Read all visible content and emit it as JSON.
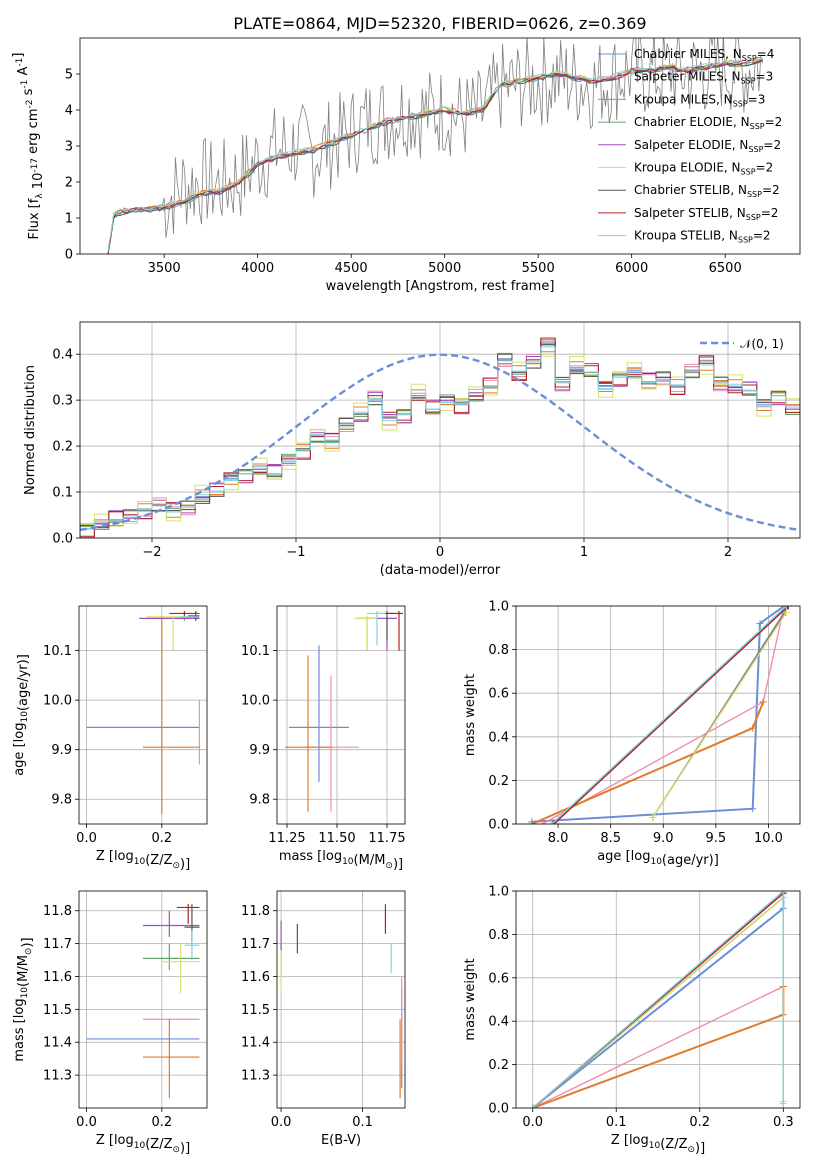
{
  "figure": {
    "title": "PLATE=0864, MJD=52320, FIBERID=0626, z=0.369"
  },
  "models": [
    {
      "name": "Chabrier MILES",
      "nssp": "4",
      "color": "#6a8fd8"
    },
    {
      "name": "Salpeter MILES",
      "nssp": "3",
      "color": "#ee8fb0"
    },
    {
      "name": "Kroupa MILES",
      "nssp": "3",
      "color": "#e07b2e"
    },
    {
      "name": "Chabrier ELODIE",
      "nssp": "2",
      "color": "#63a86a"
    },
    {
      "name": "Salpeter ELODIE",
      "nssp": "2",
      "color": "#a14fbf"
    },
    {
      "name": "Kroupa ELODIE",
      "nssp": "2",
      "color": "#d6e36a"
    },
    {
      "name": "Chabrier STELIB",
      "nssp": "2",
      "color": "#555555"
    },
    {
      "name": "Salpeter STELIB",
      "nssp": "2",
      "color": "#b22222"
    },
    {
      "name": "Kroupa STELIB",
      "nssp": "2",
      "color": "#7fd3df"
    }
  ],
  "chart_data": [
    {
      "id": "spectrum",
      "type": "line",
      "xlabel": "wavelength [Angstrom, rest frame]",
      "ylabel": "Flux [f_λ 10^-17 erg cm^-2 s^-1 A^-1]",
      "xlim": [
        3050,
        6900
      ],
      "ylim": [
        0,
        6
      ],
      "xticks": [
        3500,
        4000,
        4500,
        5000,
        5500,
        6000,
        6500
      ],
      "yticks": [
        0,
        1,
        2,
        3,
        4,
        5
      ],
      "grid": false,
      "legend": "upper-right",
      "data_color": "#808080",
      "observed_x": [
        3200,
        3230,
        3250,
        3300,
        3400,
        3500,
        3600,
        3700,
        3800,
        3900,
        4000,
        4100,
        4200,
        4300,
        4400,
        4500,
        4600,
        4700,
        4800,
        4900,
        5000,
        5100,
        5200,
        5300,
        5400,
        5500,
        5600,
        5700,
        5800,
        5900,
        6000,
        6100,
        6200,
        6300,
        6400,
        6500,
        6600,
        6700
      ],
      "observed_y": [
        0.0,
        1.05,
        1.15,
        1.2,
        1.25,
        1.4,
        1.9,
        2.0,
        1.9,
        2.1,
        2.6,
        2.9,
        3.0,
        2.8,
        3.1,
        3.4,
        3.7,
        3.8,
        4.0,
        3.9,
        4.0,
        3.8,
        3.9,
        4.6,
        4.7,
        4.8,
        4.9,
        4.8,
        4.7,
        4.9,
        5.1,
        5.0,
        5.1,
        5.0,
        5.1,
        5.2,
        5.1,
        5.3
      ],
      "model_x": [
        3200,
        3230,
        3250,
        3300,
        3400,
        3500,
        3600,
        3700,
        3800,
        3900,
        4000,
        4100,
        4200,
        4300,
        4400,
        4500,
        4600,
        4700,
        4800,
        4900,
        5000,
        5100,
        5200,
        5300,
        5400,
        5500,
        5600,
        5700,
        5800,
        5900,
        6000,
        6100,
        6200,
        6300,
        6400,
        6500,
        6600,
        6700
      ],
      "model_y": [
        0.0,
        1.05,
        1.15,
        1.2,
        1.25,
        1.3,
        1.45,
        1.7,
        1.75,
        2.0,
        2.5,
        2.7,
        2.8,
        2.9,
        3.1,
        3.3,
        3.5,
        3.7,
        3.8,
        3.9,
        4.0,
        3.9,
        4.0,
        4.7,
        4.8,
        4.9,
        5.0,
        4.9,
        4.8,
        4.9,
        5.1,
        5.1,
        5.2,
        5.1,
        5.2,
        5.3,
        5.3,
        5.4
      ]
    },
    {
      "id": "residuals",
      "type": "histogram",
      "xlabel": "(data-model)/error",
      "ylabel": "Normed distribution",
      "xlim": [
        -2.5,
        2.5
      ],
      "ylim": [
        0,
        0.47
      ],
      "xticks": [
        -2,
        -1,
        0,
        1,
        2
      ],
      "yticks": [
        0.0,
        0.1,
        0.2,
        0.3,
        0.4
      ],
      "grid": true,
      "legend": "upper-right",
      "reference_label": "𝒩(0, 1)",
      "reference_color": "#6a8fd8",
      "bin_start": -2.5,
      "bin_width": 0.1,
      "base_profile": [
        0.02,
        0.03,
        0.04,
        0.05,
        0.06,
        0.07,
        0.06,
        0.07,
        0.09,
        0.1,
        0.13,
        0.14,
        0.15,
        0.14,
        0.17,
        0.19,
        0.22,
        0.21,
        0.25,
        0.27,
        0.3,
        0.26,
        0.27,
        0.31,
        0.28,
        0.3,
        0.29,
        0.31,
        0.33,
        0.39,
        0.36,
        0.38,
        0.42,
        0.34,
        0.37,
        0.36,
        0.33,
        0.35,
        0.36,
        0.34,
        0.35,
        0.33,
        0.36,
        0.38,
        0.34,
        0.33,
        0.32,
        0.29,
        0.31,
        0.28,
        0.26,
        0.29,
        0.27,
        0.25,
        0.26,
        0.22,
        0.2,
        0.21,
        0.17,
        0.18,
        0.15,
        0.14,
        0.13,
        0.11,
        0.1,
        0.09,
        0.08,
        0.07,
        0.06,
        0.05,
        0.05,
        0.04,
        0.04,
        0.03,
        0.03,
        0.03,
        0.02,
        0.03,
        0.03,
        0.03
      ],
      "series_offsets": [
        0.0,
        0.02,
        -0.015,
        0.012,
        -0.02,
        0.025,
        -0.01,
        0.018,
        -0.005
      ]
    },
    {
      "id": "age-vs-Z",
      "type": "errorbar",
      "xlabel": "Z [log10(Z/Z☉)]",
      "ylabel": "age  [log10(age/yr)]",
      "xlim": [
        -0.02,
        0.32
      ],
      "ylim": [
        9.75,
        10.19
      ],
      "xticks": [
        0.0,
        0.2
      ],
      "yticks": [
        9.8,
        9.9,
        10.0,
        10.1
      ],
      "grid": true,
      "points": [
        {
          "series": 0,
          "x": 0.15,
          "y": 9.945,
          "x_lo": 0.0,
          "x_hi": 0.3,
          "y_lo": 9.945,
          "y_hi": 9.945
        },
        {
          "series": 1,
          "x": 0.3,
          "y": 9.9,
          "x_lo": 0.3,
          "x_hi": 0.3,
          "y_lo": 9.87,
          "y_hi": 10.0
        },
        {
          "series": 2,
          "x": 0.2,
          "y": 9.905,
          "x_lo": 0.15,
          "x_hi": 0.3,
          "y_lo": 9.77,
          "y_hi": 10.17
        },
        {
          "series": 3,
          "x": 0.26,
          "y": 10.165,
          "x_lo": 0.22,
          "x_hi": 0.3,
          "y_lo": 10.16,
          "y_hi": 10.17
        },
        {
          "series": 4,
          "x": 0.22,
          "y": 10.165,
          "x_lo": 0.14,
          "x_hi": 0.3,
          "y_lo": 10.165,
          "y_hi": 10.165
        },
        {
          "series": 5,
          "x": 0.23,
          "y": 10.168,
          "x_lo": 0.16,
          "x_hi": 0.3,
          "y_lo": 10.1,
          "y_hi": 10.17
        },
        {
          "series": 6,
          "x": 0.29,
          "y": 10.17,
          "x_lo": 0.27,
          "x_hi": 0.3,
          "y_lo": 10.16,
          "y_hi": 10.18
        },
        {
          "series": 7,
          "x": 0.26,
          "y": 10.175,
          "x_lo": 0.22,
          "x_hi": 0.3,
          "y_lo": 10.17,
          "y_hi": 10.18
        },
        {
          "series": 8,
          "x": 0.28,
          "y": 10.168,
          "x_lo": 0.25,
          "x_hi": 0.3,
          "y_lo": 10.165,
          "y_hi": 10.17
        }
      ]
    },
    {
      "id": "age-vs-mass",
      "type": "errorbar",
      "xlabel": "mass [log10(M/M☉)]",
      "ylabel": "",
      "xlim": [
        11.2,
        11.84
      ],
      "ylim": [
        9.75,
        10.19
      ],
      "xticks": [
        11.25,
        11.5,
        11.75
      ],
      "yticks": [
        9.8,
        9.9,
        10.0,
        10.1
      ],
      "grid": true,
      "points": [
        {
          "series": 0,
          "x": 11.41,
          "y": 9.945,
          "x_lo": 11.26,
          "x_hi": 11.56,
          "y_lo": 9.835,
          "y_hi": 10.11
        },
        {
          "series": 1,
          "x": 11.47,
          "y": 9.905,
          "x_lo": 11.34,
          "x_hi": 11.61,
          "y_lo": 9.775,
          "y_hi": 10.05
        },
        {
          "series": 2,
          "x": 11.355,
          "y": 9.905,
          "x_lo": 11.24,
          "x_hi": 11.47,
          "y_lo": 9.775,
          "y_hi": 10.09
        },
        {
          "series": 3,
          "x": 11.65,
          "y": 10.165,
          "x_lo": 11.6,
          "x_hi": 11.7,
          "y_lo": 10.1,
          "y_hi": 10.17
        },
        {
          "series": 4,
          "x": 11.75,
          "y": 10.165,
          "x_lo": 11.68,
          "x_hi": 11.8,
          "y_lo": 10.1,
          "y_hi": 10.17
        },
        {
          "series": 5,
          "x": 11.65,
          "y": 10.165,
          "x_lo": 11.59,
          "x_hi": 11.7,
          "y_lo": 10.1,
          "y_hi": 10.17
        },
        {
          "series": 6,
          "x": 11.75,
          "y": 10.175,
          "x_lo": 11.7,
          "x_hi": 11.79,
          "y_lo": 10.12,
          "y_hi": 10.18
        },
        {
          "series": 7,
          "x": 11.81,
          "y": 10.175,
          "x_lo": 11.75,
          "x_hi": 11.83,
          "y_lo": 10.1,
          "y_hi": 10.18
        },
        {
          "series": 8,
          "x": 11.7,
          "y": 10.175,
          "x_lo": 11.65,
          "x_hi": 11.74,
          "y_lo": 10.11,
          "y_hi": 10.18
        }
      ]
    },
    {
      "id": "massweight-vs-age",
      "type": "line",
      "xlabel": "age  [log10(age/yr)]",
      "ylabel": "mass weight",
      "xlim": [
        7.6,
        10.3
      ],
      "ylim": [
        0,
        1
      ],
      "xticks": [
        8.0,
        8.5,
        9.0,
        9.5,
        10.0
      ],
      "yticks": [
        0.0,
        0.2,
        0.4,
        0.6,
        0.8,
        1.0
      ],
      "grid": true,
      "series": [
        {
          "series": 0,
          "x": [
            7.75,
            9.85,
            9.92,
            10.15
          ],
          "y": [
            0.01,
            0.07,
            0.92,
            1.0
          ]
        },
        {
          "series": 1,
          "x": [
            7.85,
            9.95,
            10.15
          ],
          "y": [
            0.0,
            0.56,
            1.0
          ]
        },
        {
          "series": 2,
          "x": [
            7.75,
            9.85,
            9.95
          ],
          "y": [
            0.0,
            0.44,
            0.56
          ]
        },
        {
          "series": 3,
          "x": [
            8.9,
            10.15
          ],
          "y": [
            0.03,
            0.97
          ]
        },
        {
          "series": 4,
          "x": [
            8.9,
            10.16
          ],
          "y": [
            0.03,
            0.97
          ]
        },
        {
          "series": 5,
          "x": [
            8.9,
            10.17
          ],
          "y": [
            0.03,
            0.97
          ]
        },
        {
          "series": 6,
          "x": [
            7.95,
            10.18
          ],
          "y": [
            0.0,
            1.0
          ]
        },
        {
          "series": 7,
          "x": [
            7.96,
            10.19
          ],
          "y": [
            0.0,
            1.0
          ]
        },
        {
          "series": 8,
          "x": [
            7.94,
            10.17
          ],
          "y": [
            0.0,
            1.0
          ]
        }
      ]
    },
    {
      "id": "mass-vs-Z",
      "type": "errorbar",
      "xlabel": "Z [log10(Z/Z☉)]",
      "ylabel": "mass [log10(M/M☉)]",
      "xlim": [
        -0.02,
        0.32
      ],
      "ylim": [
        11.2,
        11.86
      ],
      "xticks": [
        0.0,
        0.2
      ],
      "yticks": [
        11.3,
        11.4,
        11.5,
        11.6,
        11.7,
        11.8
      ],
      "grid": true,
      "points": [
        {
          "series": 0,
          "x": 0.15,
          "y": 11.41,
          "x_lo": 0.0,
          "x_hi": 0.3,
          "y_lo": 11.41,
          "y_hi": 11.41
        },
        {
          "series": 1,
          "x": 0.22,
          "y": 11.47,
          "x_lo": 0.15,
          "x_hi": 0.3,
          "y_lo": 11.47,
          "y_hi": 11.47
        },
        {
          "series": 2,
          "x": 0.22,
          "y": 11.355,
          "x_lo": 0.15,
          "x_hi": 0.3,
          "y_lo": 11.23,
          "y_hi": 11.47
        },
        {
          "series": 3,
          "x": 0.22,
          "y": 11.655,
          "x_lo": 0.15,
          "x_hi": 0.3,
          "y_lo": 11.62,
          "y_hi": 11.7
        },
        {
          "series": 4,
          "x": 0.22,
          "y": 11.755,
          "x_lo": 0.15,
          "x_hi": 0.3,
          "y_lo": 11.72,
          "y_hi": 11.8
        },
        {
          "series": 5,
          "x": 0.25,
          "y": 11.645,
          "x_lo": 0.2,
          "x_hi": 0.3,
          "y_lo": 11.55,
          "y_hi": 11.7
        },
        {
          "series": 6,
          "x": 0.28,
          "y": 11.75,
          "x_lo": 0.26,
          "x_hi": 0.3,
          "y_lo": 11.7,
          "y_hi": 11.82
        },
        {
          "series": 7,
          "x": 0.27,
          "y": 11.81,
          "x_lo": 0.24,
          "x_hi": 0.3,
          "y_lo": 11.76,
          "y_hi": 11.82
        },
        {
          "series": 8,
          "x": 0.28,
          "y": 11.695,
          "x_lo": 0.26,
          "x_hi": 0.3,
          "y_lo": 11.65,
          "y_hi": 11.74
        }
      ]
    },
    {
      "id": "mass-vs-ebv",
      "type": "errorbar",
      "xlabel": "E(B-V)",
      "ylabel": "",
      "xlim": [
        -0.005,
        0.152
      ],
      "ylim": [
        11.2,
        11.86
      ],
      "xticks": [
        0.0,
        0.1
      ],
      "yticks": [
        11.3,
        11.4,
        11.5,
        11.6,
        11.7,
        11.8
      ],
      "grid": true,
      "points": [
        {
          "series": 0,
          "x": 0.148,
          "y": 11.41,
          "x_lo": 0.148,
          "x_hi": 0.148,
          "y_lo": 11.26,
          "y_hi": 11.56
        },
        {
          "series": 1,
          "x": 0.148,
          "y": 11.47,
          "x_lo": 0.148,
          "x_hi": 0.148,
          "y_lo": 11.34,
          "y_hi": 11.6
        },
        {
          "series": 2,
          "x": 0.146,
          "y": 11.355,
          "x_lo": 0.146,
          "x_hi": 0.146,
          "y_lo": 11.23,
          "y_hi": 11.47
        },
        {
          "series": 3,
          "x": 0.0,
          "y": 11.655,
          "x_lo": 0.0,
          "x_hi": 0.0,
          "y_lo": 11.6,
          "y_hi": 11.7
        },
        {
          "series": 4,
          "x": 0.0,
          "y": 11.72,
          "x_lo": 0.0,
          "x_hi": 0.0,
          "y_lo": 11.68,
          "y_hi": 11.77
        },
        {
          "series": 5,
          "x": 0.0,
          "y": 11.62,
          "x_lo": 0.0,
          "x_hi": 0.0,
          "y_lo": 11.55,
          "y_hi": 11.68
        },
        {
          "series": 6,
          "x": 0.02,
          "y": 11.715,
          "x_lo": 0.02,
          "x_hi": 0.02,
          "y_lo": 11.67,
          "y_hi": 11.76
        },
        {
          "series": 7,
          "x": 0.128,
          "y": 11.775,
          "x_lo": 0.128,
          "x_hi": 0.128,
          "y_lo": 11.73,
          "y_hi": 11.82
        },
        {
          "series": 8,
          "x": 0.135,
          "y": 11.655,
          "x_lo": 0.135,
          "x_hi": 0.135,
          "y_lo": 11.61,
          "y_hi": 11.7
        }
      ]
    },
    {
      "id": "massweight-vs-Z",
      "type": "line",
      "xlabel": "Z [log10(Z/Z☉)]",
      "ylabel": "mass weight",
      "xlim": [
        -0.02,
        0.32
      ],
      "ylim": [
        0,
        1
      ],
      "xticks": [
        0.0,
        0.1,
        0.2,
        0.3
      ],
      "yticks": [
        0.0,
        0.2,
        0.4,
        0.6,
        0.8,
        1.0
      ],
      "grid": true,
      "series": [
        {
          "series": 0,
          "x": [
            0.0,
            0.3,
            0.3
          ],
          "y": [
            0.0,
            0.92,
            1.0
          ]
        },
        {
          "series": 1,
          "x": [
            0.0,
            0.3,
            0.3
          ],
          "y": [
            0.0,
            0.56,
            1.0
          ]
        },
        {
          "series": 2,
          "x": [
            0.0,
            0.3,
            0.3
          ],
          "y": [
            0.0,
            0.43,
            0.56
          ]
        },
        {
          "series": 3,
          "x": [
            0.0,
            0.3,
            0.3
          ],
          "y": [
            0.0,
            0.97,
            1.0
          ]
        },
        {
          "series": 4,
          "x": [
            0.0,
            0.3,
            0.3
          ],
          "y": [
            0.0,
            0.97,
            1.0
          ]
        },
        {
          "series": 5,
          "x": [
            0.0,
            0.3,
            0.3,
            0.3
          ],
          "y": [
            0.0,
            0.97,
            1.0,
            0.03
          ]
        },
        {
          "series": 6,
          "x": [
            0.0,
            0.3,
            0.3
          ],
          "y": [
            0.0,
            0.99,
            1.0
          ]
        },
        {
          "series": 7,
          "x": [
            0.0,
            0.3,
            0.3
          ],
          "y": [
            0.0,
            0.99,
            1.0
          ]
        },
        {
          "series": 8,
          "x": [
            0.0,
            0.3,
            0.3
          ],
          "y": [
            0.0,
            1.0,
            0.02
          ]
        }
      ]
    }
  ]
}
